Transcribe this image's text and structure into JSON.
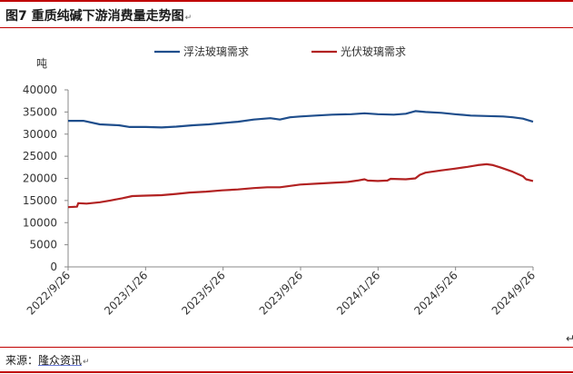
{
  "figure": {
    "title": "图7  重质纯碱下游消费量走势图",
    "title_mark": "↵",
    "source_label": "来源：",
    "source_name": "隆众资讯",
    "source_mark": "↵",
    "corner_mark": "↵"
  },
  "colors": {
    "accent_rule": "#c00000",
    "series_float_glass": "#1f4e8c",
    "series_pv_glass": "#b22222"
  },
  "chart_data": {
    "type": "line",
    "ylabel": "吨",
    "ylim": [
      0,
      40000
    ],
    "y_ticks": [
      0,
      5000,
      10000,
      15000,
      20000,
      25000,
      30000,
      35000,
      40000
    ],
    "x_ticks": [
      "2022/9/26",
      "2023/1/26",
      "2023/5/26",
      "2023/9/26",
      "2024/1/26",
      "2024/5/26",
      "2024/9/26"
    ],
    "x_range": [
      "2022-09-26",
      "2024-09-26"
    ],
    "legend_position": "top-center",
    "grid": false,
    "series": [
      {
        "name": "浮法玻璃需求",
        "color": "#1f4e8c",
        "points": [
          [
            "2022-09-26",
            33000
          ],
          [
            "2022-10-20",
            33000
          ],
          [
            "2022-11-15",
            32200
          ],
          [
            "2022-12-15",
            32000
          ],
          [
            "2023-01-01",
            31600
          ],
          [
            "2023-01-26",
            31600
          ],
          [
            "2023-02-20",
            31500
          ],
          [
            "2023-03-15",
            31700
          ],
          [
            "2023-04-10",
            32000
          ],
          [
            "2023-05-05",
            32200
          ],
          [
            "2023-05-26",
            32500
          ],
          [
            "2023-06-20",
            32800
          ],
          [
            "2023-07-15",
            33300
          ],
          [
            "2023-08-10",
            33600
          ],
          [
            "2023-08-25",
            33300
          ],
          [
            "2023-09-10",
            33800
          ],
          [
            "2023-09-26",
            34000
          ],
          [
            "2023-10-20",
            34200
          ],
          [
            "2023-11-15",
            34400
          ],
          [
            "2023-12-15",
            34500
          ],
          [
            "2024-01-05",
            34700
          ],
          [
            "2024-01-26",
            34500
          ],
          [
            "2024-02-20",
            34400
          ],
          [
            "2024-03-10",
            34600
          ],
          [
            "2024-03-25",
            35200
          ],
          [
            "2024-04-10",
            35000
          ],
          [
            "2024-05-05",
            34800
          ],
          [
            "2024-05-26",
            34500
          ],
          [
            "2024-06-20",
            34200
          ],
          [
            "2024-07-15",
            34100
          ],
          [
            "2024-08-10",
            34000
          ],
          [
            "2024-08-25",
            33800
          ],
          [
            "2024-09-10",
            33500
          ],
          [
            "2024-09-26",
            32800
          ]
        ]
      },
      {
        "name": "光伏玻璃需求",
        "color": "#b22222",
        "points": [
          [
            "2022-09-26",
            13500
          ],
          [
            "2022-10-10",
            13600
          ],
          [
            "2022-10-12",
            14400
          ],
          [
            "2022-10-25",
            14300
          ],
          [
            "2022-11-15",
            14600
          ],
          [
            "2022-12-01",
            15000
          ],
          [
            "2022-12-20",
            15500
          ],
          [
            "2023-01-05",
            16000
          ],
          [
            "2023-01-26",
            16100
          ],
          [
            "2023-02-20",
            16200
          ],
          [
            "2023-03-15",
            16500
          ],
          [
            "2023-04-05",
            16800
          ],
          [
            "2023-05-01",
            17000
          ],
          [
            "2023-05-26",
            17300
          ],
          [
            "2023-06-20",
            17500
          ],
          [
            "2023-07-15",
            17800
          ],
          [
            "2023-08-05",
            18000
          ],
          [
            "2023-08-25",
            18000
          ],
          [
            "2023-09-10",
            18300
          ],
          [
            "2023-09-26",
            18600
          ],
          [
            "2023-10-20",
            18800
          ],
          [
            "2023-11-15",
            19000
          ],
          [
            "2023-12-10",
            19200
          ],
          [
            "2023-12-25",
            19500
          ],
          [
            "2024-01-05",
            19800
          ],
          [
            "2024-01-10",
            19500
          ],
          [
            "2024-01-26",
            19400
          ],
          [
            "2024-02-10",
            19500
          ],
          [
            "2024-02-15",
            19900
          ],
          [
            "2024-03-10",
            19800
          ],
          [
            "2024-03-25",
            20000
          ],
          [
            "2024-04-01",
            20800
          ],
          [
            "2024-04-10",
            21300
          ],
          [
            "2024-05-05",
            21800
          ],
          [
            "2024-05-26",
            22200
          ],
          [
            "2024-06-15",
            22600
          ],
          [
            "2024-07-01",
            23000
          ],
          [
            "2024-07-15",
            23200
          ],
          [
            "2024-07-25",
            23000
          ],
          [
            "2024-08-05",
            22500
          ],
          [
            "2024-08-25",
            21500
          ],
          [
            "2024-09-10",
            20500
          ],
          [
            "2024-09-15",
            19800
          ],
          [
            "2024-09-26",
            19400
          ]
        ]
      }
    ]
  }
}
